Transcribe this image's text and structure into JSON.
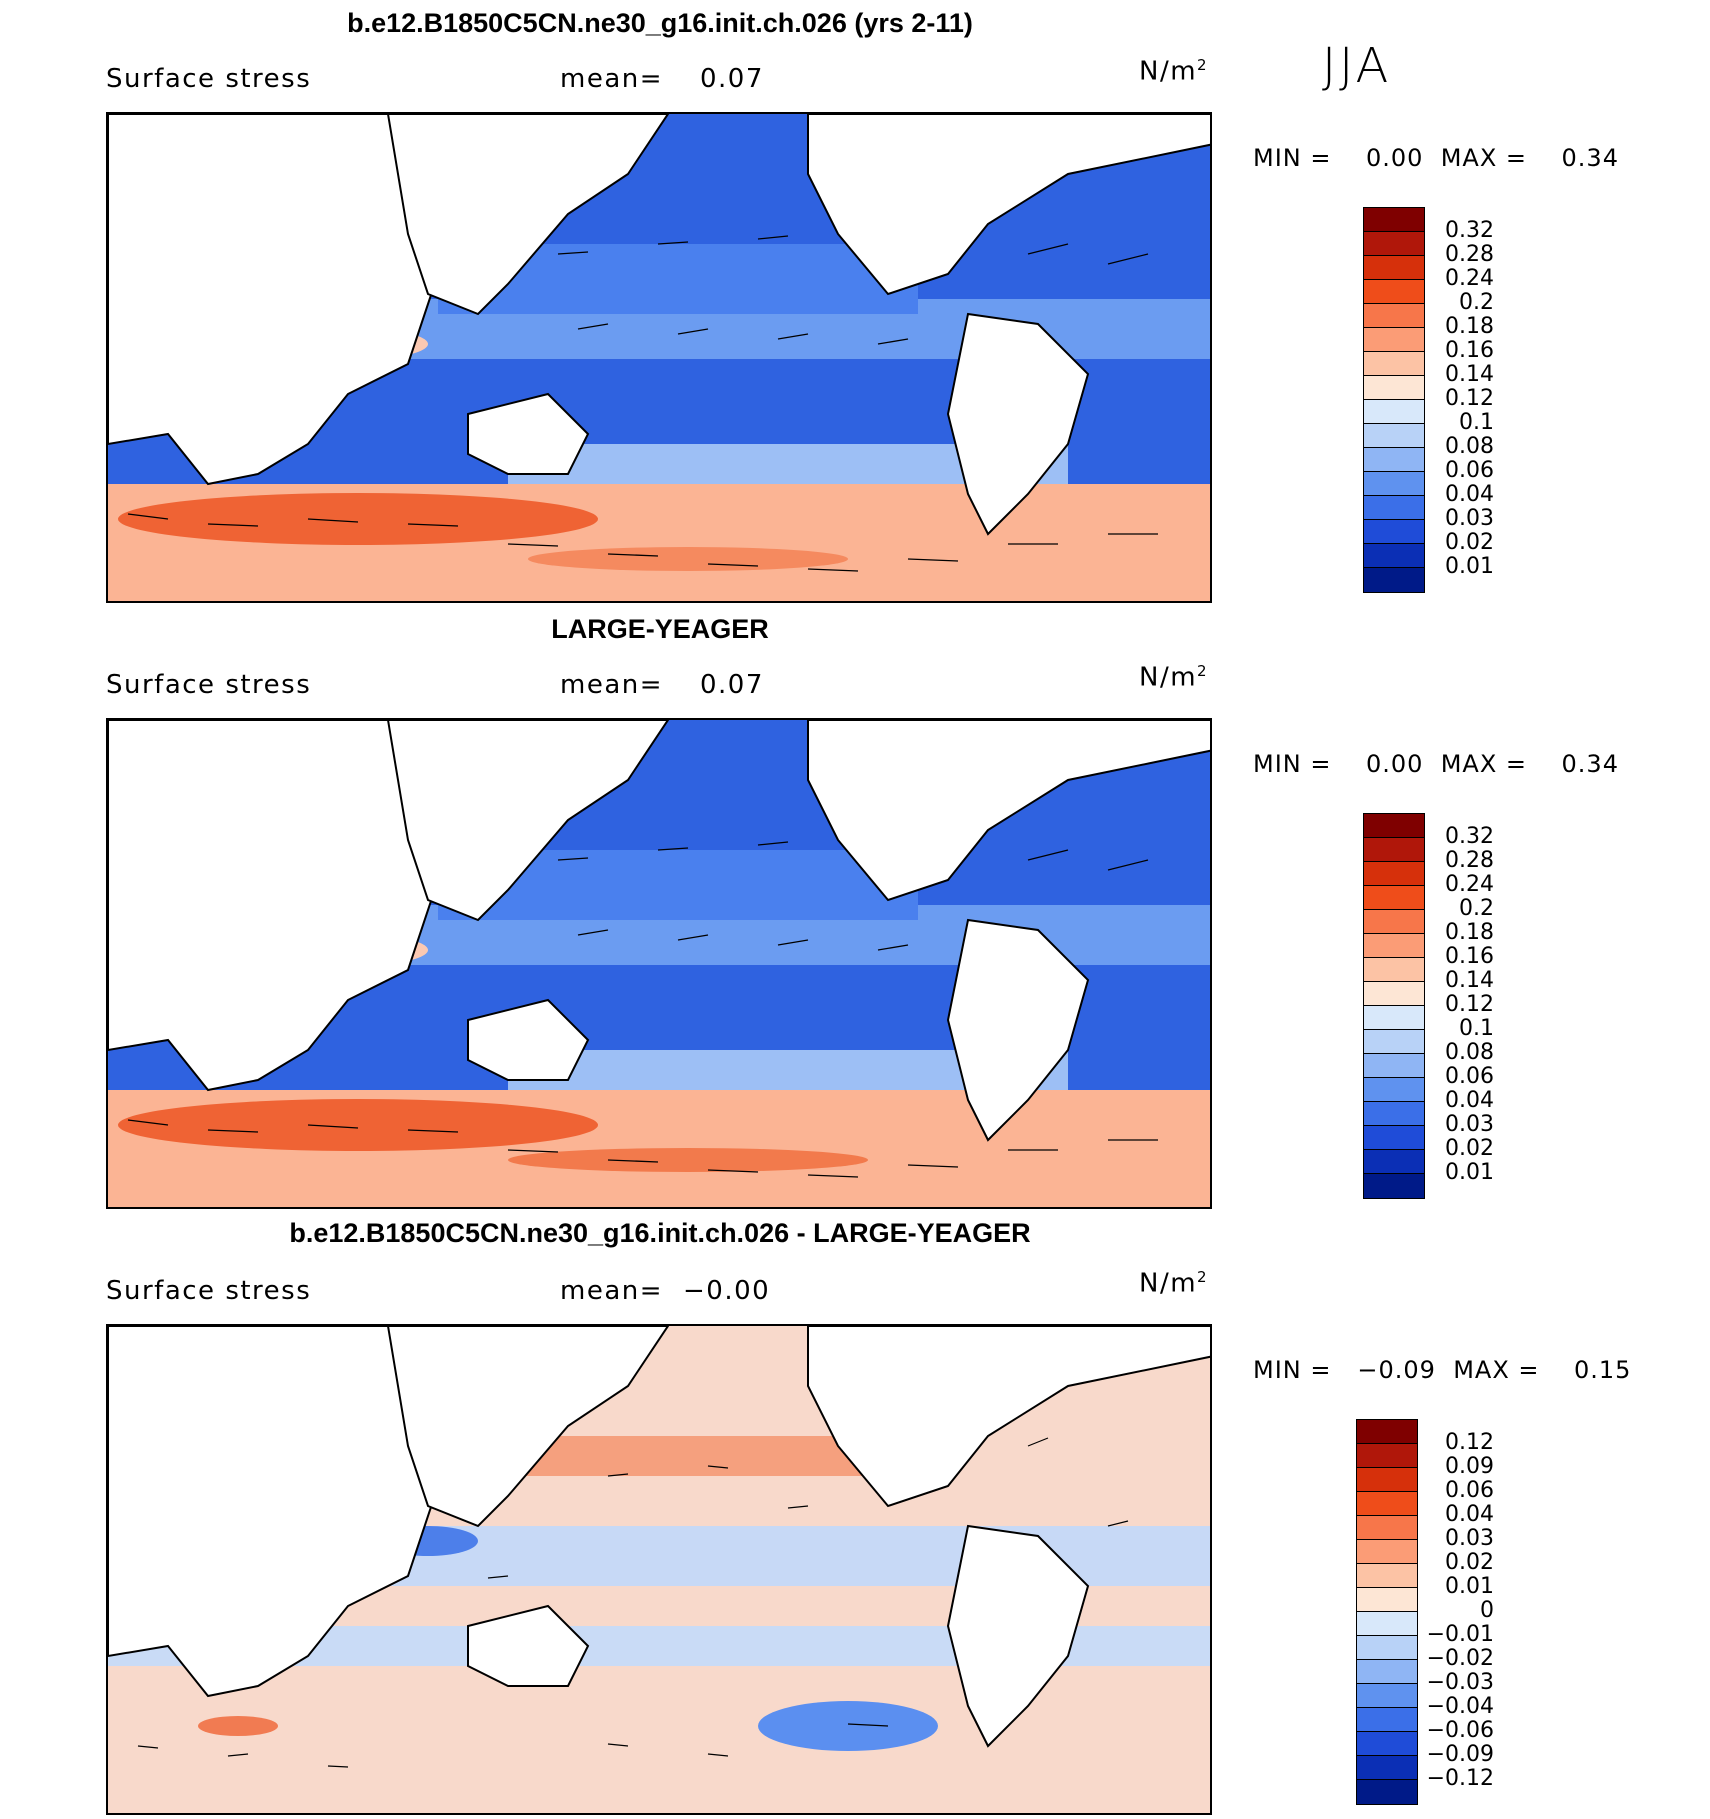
{
  "season": "JJA",
  "panels": [
    {
      "title": "b.e12.B1850C5CN.ne30_g16.init.ch.026 (yrs 2-11)",
      "variable": "Surface stress",
      "mean_label": "mean=",
      "mean_value": "0.07",
      "units": "N/m",
      "units_exp": "2",
      "min_label": "MIN =",
      "min_value": "0.00",
      "max_label": "MAX =",
      "max_value": "0.34",
      "colorbar_labels": [
        "0.32",
        "0.28",
        "0.24",
        "0.2",
        "0.18",
        "0.16",
        "0.14",
        "0.12",
        "0.1",
        "0.08",
        "0.06",
        "0.04",
        "0.03",
        "0.02",
        "0.01"
      ],
      "colorbar_colors": [
        "#7f0000",
        "#b0170a",
        "#d6300b",
        "#ef4d1a",
        "#f7764a",
        "#fb9c76",
        "#fcc3a5",
        "#fde6d5",
        "#d8e8fa",
        "#b8d2f7",
        "#8fb5f4",
        "#5f92ef",
        "#3b6fe8",
        "#1f4cd8",
        "#0b2fb5",
        "#001a88"
      ]
    },
    {
      "title": "LARGE-YEAGER",
      "variable": "Surface stress",
      "mean_label": "mean=",
      "mean_value": "0.07",
      "units": "N/m",
      "units_exp": "2",
      "min_label": "MIN =",
      "min_value": "0.00",
      "max_label": "MAX =",
      "max_value": "0.34",
      "colorbar_labels": [
        "0.32",
        "0.28",
        "0.24",
        "0.2",
        "0.18",
        "0.16",
        "0.14",
        "0.12",
        "0.1",
        "0.08",
        "0.06",
        "0.04",
        "0.03",
        "0.02",
        "0.01"
      ],
      "colorbar_colors": [
        "#7f0000",
        "#b0170a",
        "#d6300b",
        "#ef4d1a",
        "#f7764a",
        "#fb9c76",
        "#fcc3a5",
        "#fde6d5",
        "#d8e8fa",
        "#b8d2f7",
        "#8fb5f4",
        "#5f92ef",
        "#3b6fe8",
        "#1f4cd8",
        "#0b2fb5",
        "#001a88"
      ]
    },
    {
      "title": "b.e12.B1850C5CN.ne30_g16.init.ch.026 - LARGE-YEAGER",
      "variable": "Surface stress",
      "mean_label": "mean=",
      "mean_value": "−0.00",
      "units": "N/m",
      "units_exp": "2",
      "min_label": "MIN =",
      "min_value": "−0.09",
      "max_label": "MAX =",
      "max_value": "0.15",
      "colorbar_labels": [
        "0.12",
        "0.09",
        "0.06",
        "0.04",
        "0.03",
        "0.02",
        "0.01",
        "0",
        "−0.01",
        "−0.02",
        "−0.03",
        "−0.04",
        "−0.06",
        "−0.09",
        "−0.12"
      ],
      "colorbar_colors": [
        "#7f0000",
        "#b0170a",
        "#d6300b",
        "#ef4d1a",
        "#f7764a",
        "#fb9c76",
        "#fcc3a5",
        "#fde6d5",
        "#d8e8fa",
        "#b8d2f7",
        "#8fb5f4",
        "#5f92ef",
        "#3b6fe8",
        "#1f4cd8",
        "#0b2fb5",
        "#001a88"
      ]
    }
  ]
}
